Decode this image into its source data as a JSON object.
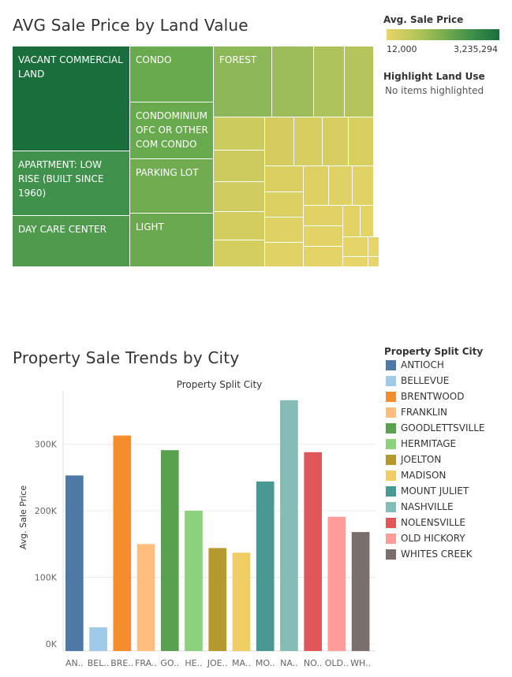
{
  "treemap": {
    "title": "AVG Sale Price by Land Value",
    "labeled_tiles": [
      {
        "label": "VACANT COMMERCIAL LAND",
        "color": "#1a6e3b"
      },
      {
        "label": "APARTMENT: LOW RISE (BUILT SINCE 1960)",
        "color": "#3f914b"
      },
      {
        "label": "DAY CARE CENTER",
        "color": "#4f9a4d"
      },
      {
        "label": "CONDO",
        "color": "#6aaa4f"
      },
      {
        "label": "CONDOMINIUM OFC  OR OTHER COM CONDO",
        "color": "#6aaa4f"
      },
      {
        "label": "PARKING LOT",
        "color": "#71ad50"
      },
      {
        "label": "LIGHT",
        "color": "#6aa94f"
      },
      {
        "label": "FOREST",
        "color": "#8cb858"
      }
    ],
    "color_legend": {
      "title": "Avg. Sale Price",
      "min_label": "12,000",
      "max_label": "3,235,294",
      "colors": [
        "#e8d46a",
        "#b9c75a",
        "#7aae4f",
        "#3f914b",
        "#1a6e3b"
      ]
    },
    "highlight": {
      "title": "Highlight Land Use",
      "value": "No items highlighted"
    }
  },
  "bar_section": {
    "title": "Property Sale Trends by City",
    "legend_title": "Property Split City"
  },
  "chart_data": {
    "type": "bar",
    "title": "Property Split City",
    "ylabel": "Avg. Sale Price",
    "xlabel": "",
    "ylim": [
      0,
      380000
    ],
    "yticks": [
      0,
      100000,
      200000,
      300000
    ],
    "ytick_labels": [
      "0K",
      "100K",
      "200K",
      "300K"
    ],
    "categories": [
      "ANTIOCH",
      "BELLEVUE",
      "BRENTWOOD",
      "FRANKLIN",
      "GOODLETTSVILLE",
      "HERMITAGE",
      "JOELTON",
      "MADISON",
      "MOUNT JULIET",
      "NASHVILLE",
      "NOLENSVILLE",
      "OLD HICKORY",
      "WHITES CREEK"
    ],
    "tick_labels": [
      "AN..",
      "BEL..",
      "BRE..",
      "FRA..",
      "GO..",
      "HE..",
      "JOE..",
      "MA..",
      "MO..",
      "NA..",
      "NO..",
      "OLD..",
      "WH.."
    ],
    "values": [
      253000,
      25000,
      313000,
      150000,
      291000,
      200000,
      144000,
      137000,
      244000,
      366000,
      288000,
      191000,
      168000
    ],
    "colors": [
      "#4e79a7",
      "#a0cbe8",
      "#f28e2b",
      "#ffbe7d",
      "#59a14f",
      "#8cd17d",
      "#b6992d",
      "#f1ce63",
      "#499894",
      "#86bcb6",
      "#e15759",
      "#ff9d9a",
      "#79706e"
    ],
    "grid": true,
    "legend_placement": "right"
  }
}
